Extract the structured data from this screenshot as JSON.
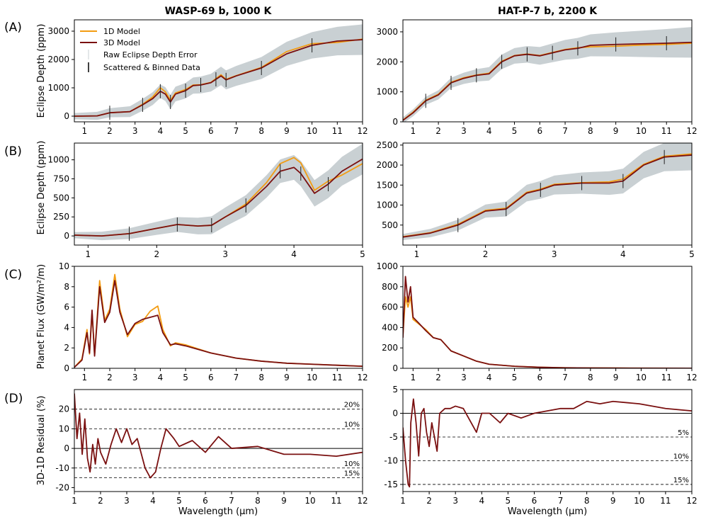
{
  "figure": {
    "titles": [
      "WASP-69 b, 1000 K",
      "HAT-P-7 b, 2200 K"
    ],
    "row_labels": [
      "(A)",
      "(B)",
      "(C)",
      "(D)"
    ],
    "ylabels": [
      "Eclipse Depth (ppm)",
      "Eclipse Depth (ppm)",
      "Planet Flux (GW/m²/m)",
      "3D-1D Residual (%)"
    ],
    "xlabel": "Wavelength (μm)",
    "legend": [
      "1D Model",
      "3D Model",
      "Raw Eclipse Depth Error",
      "Scattered & Binned Data"
    ],
    "colors": {
      "model_1d": "#f39c12",
      "model_3d": "#7a1010",
      "error_band": "#c9d0d3",
      "data": "#222222"
    }
  },
  "chart_data": [
    {
      "id": "A-left",
      "type": "line",
      "title": "WASP-69 b, 1000 K",
      "ylabel": "Eclipse Depth (ppm)",
      "xlim": [
        0.6,
        12
      ],
      "ylim": [
        -200,
        3400
      ],
      "xticks": [
        1,
        2,
        3,
        4,
        5,
        6,
        7,
        8,
        9,
        10,
        11,
        12
      ],
      "yticks": [
        0,
        1000,
        2000,
        3000
      ],
      "series": [
        {
          "name": "3D Model",
          "x": [
            0.6,
            1.5,
            2,
            2.8,
            3.3,
            3.7,
            4,
            4.2,
            4.4,
            4.6,
            5,
            5.3,
            5.6,
            6,
            6.2,
            6.4,
            6.6,
            7,
            8,
            9,
            10,
            11,
            12
          ],
          "values": [
            0,
            10,
            120,
            160,
            400,
            620,
            880,
            780,
            500,
            780,
            900,
            1080,
            1100,
            1180,
            1300,
            1420,
            1280,
            1420,
            1700,
            2200,
            2500,
            2650,
            2700
          ]
        },
        {
          "name": "1D Model",
          "x": [
            0.6,
            1.5,
            2,
            2.8,
            3.3,
            3.7,
            4,
            4.2,
            4.4,
            4.6,
            5,
            5.3,
            5.6,
            6,
            6.2,
            6.4,
            6.6,
            7,
            8,
            9,
            10,
            11,
            12
          ],
          "values": [
            0,
            10,
            120,
            160,
            420,
            680,
            1000,
            860,
            560,
            820,
            940,
            1100,
            1110,
            1190,
            1330,
            1460,
            1300,
            1430,
            1720,
            2280,
            2560,
            2600,
            2720
          ]
        }
      ]
    },
    {
      "id": "A-right",
      "type": "line",
      "title": "HAT-P-7 b, 2200 K",
      "ylabel": "",
      "xlim": [
        0.6,
        12
      ],
      "ylim": [
        0,
        3400
      ],
      "xticks": [
        1,
        2,
        3,
        4,
        5,
        6,
        7,
        8,
        9,
        10,
        11,
        12
      ],
      "yticks": [
        0,
        1000,
        2000,
        3000
      ],
      "series": [
        {
          "name": "3D Model",
          "x": [
            0.6,
            1,
            1.5,
            2,
            2.5,
            3,
            3.5,
            4,
            4.5,
            5,
            5.5,
            6,
            6.5,
            7,
            7.5,
            8,
            9,
            10,
            11,
            12
          ],
          "values": [
            50,
            300,
            700,
            900,
            1300,
            1450,
            1550,
            1600,
            2000,
            2200,
            2250,
            2200,
            2300,
            2400,
            2450,
            2550,
            2580,
            2600,
            2620,
            2650
          ]
        },
        {
          "name": "1D Model",
          "x": [
            0.6,
            1,
            1.5,
            2,
            2.5,
            3,
            3.5,
            4,
            4.5,
            5,
            5.5,
            6,
            6.5,
            7,
            7.5,
            8,
            9,
            10,
            11,
            12
          ],
          "values": [
            60,
            320,
            720,
            920,
            1320,
            1470,
            1560,
            1620,
            2020,
            2210,
            2260,
            2210,
            2310,
            2410,
            2470,
            2500,
            2520,
            2560,
            2580,
            2620
          ]
        }
      ]
    },
    {
      "id": "B-left",
      "type": "line",
      "title": "",
      "ylabel": "Eclipse Depth (ppm)",
      "xlim": [
        0.8,
        5
      ],
      "ylim": [
        -120,
        1220
      ],
      "xticks": [
        1,
        2,
        3,
        4,
        5
      ],
      "yticks": [
        0,
        250,
        500,
        750,
        1000
      ],
      "series": [
        {
          "name": "3D Model",
          "x": [
            0.8,
            1.2,
            1.6,
            2,
            2.3,
            2.6,
            2.8,
            3,
            3.3,
            3.6,
            3.8,
            4,
            4.1,
            4.3,
            4.5,
            4.7,
            5
          ],
          "values": [
            10,
            0,
            30,
            100,
            150,
            130,
            140,
            250,
            400,
            650,
            850,
            900,
            820,
            560,
            680,
            850,
            1010
          ]
        },
        {
          "name": "1D Model",
          "x": [
            0.8,
            1.2,
            1.6,
            2,
            2.3,
            2.6,
            2.8,
            3,
            3.3,
            3.6,
            3.8,
            4,
            4.1,
            4.3,
            4.5,
            4.7,
            5
          ],
          "values": [
            10,
            0,
            30,
            100,
            150,
            130,
            140,
            250,
            420,
            700,
            950,
            1030,
            960,
            600,
            720,
            800,
            950
          ]
        }
      ]
    },
    {
      "id": "B-right",
      "type": "line",
      "title": "",
      "ylabel": "",
      "xlim": [
        0.8,
        5
      ],
      "ylim": [
        0,
        2550
      ],
      "xticks": [
        1,
        2,
        3,
        4,
        5
      ],
      "yticks": [
        500,
        1000,
        1500,
        2000,
        2500
      ],
      "series": [
        {
          "name": "3D Model",
          "x": [
            0.8,
            1.2,
            1.6,
            2,
            2.3,
            2.6,
            2.8,
            3,
            3.4,
            3.8,
            4,
            4.3,
            4.6,
            5
          ],
          "values": [
            200,
            300,
            500,
            850,
            900,
            1300,
            1380,
            1500,
            1550,
            1550,
            1600,
            2000,
            2200,
            2250
          ]
        },
        {
          "name": "1D Model",
          "x": [
            0.8,
            1.2,
            1.6,
            2,
            2.3,
            2.6,
            2.8,
            3,
            3.4,
            3.8,
            4,
            4.3,
            4.6,
            5
          ],
          "values": [
            210,
            310,
            520,
            870,
            920,
            1320,
            1400,
            1520,
            1560,
            1580,
            1650,
            2020,
            2220,
            2280
          ]
        }
      ]
    },
    {
      "id": "C-left",
      "type": "line",
      "title": "",
      "ylabel": "Planet Flux (GW/m²/m)",
      "xlim": [
        0.6,
        12
      ],
      "ylim": [
        0,
        10
      ],
      "xticks": [
        1,
        2,
        3,
        4,
        5,
        6,
        7,
        8,
        9,
        10,
        11,
        12
      ],
      "yticks": [
        0,
        2,
        4,
        6,
        8,
        10
      ],
      "series": [
        {
          "name": "3D Model",
          "x": [
            0.6,
            0.9,
            1.1,
            1.2,
            1.3,
            1.4,
            1.6,
            1.8,
            2,
            2.2,
            2.4,
            2.7,
            3,
            3.3,
            3.6,
            3.9,
            4.1,
            4.4,
            4.6,
            5,
            6,
            7,
            8,
            9,
            10,
            11,
            12
          ],
          "values": [
            0.1,
            0.8,
            3.5,
            1.5,
            5.7,
            1.2,
            8.0,
            4.5,
            5.5,
            8.6,
            5.5,
            3.3,
            4.4,
            4.8,
            5.0,
            5.2,
            3.5,
            2.3,
            2.4,
            2.2,
            1.5,
            1.0,
            0.7,
            0.5,
            0.4,
            0.3,
            0.2
          ]
        },
        {
          "name": "1D Model",
          "x": [
            0.6,
            0.9,
            1.1,
            1.2,
            1.3,
            1.4,
            1.6,
            1.8,
            2,
            2.2,
            2.4,
            2.7,
            3,
            3.3,
            3.6,
            3.9,
            4.1,
            4.4,
            4.6,
            5,
            6,
            7,
            8,
            9,
            10,
            11,
            12
          ],
          "values": [
            0.1,
            0.9,
            3.8,
            1.4,
            5.5,
            1.3,
            8.6,
            4.7,
            5.8,
            9.2,
            5.8,
            3.1,
            4.3,
            4.6,
            5.6,
            6.1,
            3.8,
            2.2,
            2.5,
            2.3,
            1.5,
            1.0,
            0.7,
            0.5,
            0.4,
            0.3,
            0.2
          ]
        }
      ]
    },
    {
      "id": "C-right",
      "type": "line",
      "title": "",
      "ylabel": "",
      "xlim": [
        0.6,
        12
      ],
      "ylim": [
        0,
        1000
      ],
      "xticks": [
        1,
        2,
        3,
        4,
        5,
        6,
        7,
        8,
        9,
        10,
        11,
        12
      ],
      "yticks": [
        0,
        200,
        400,
        600,
        800,
        1000
      ],
      "series": [
        {
          "name": "3D Model",
          "x": [
            0.6,
            0.7,
            0.8,
            0.9,
            1,
            1.2,
            1.5,
            1.8,
            2.1,
            2.5,
            3,
            3.5,
            4,
            5,
            6,
            7,
            8,
            9,
            12
          ],
          "values": [
            300,
            900,
            650,
            800,
            500,
            450,
            370,
            300,
            280,
            170,
            120,
            70,
            40,
            20,
            10,
            5,
            3,
            2,
            1
          ]
        },
        {
          "name": "1D Model",
          "x": [
            0.6,
            0.7,
            0.8,
            0.9,
            1,
            1.2,
            1.5,
            1.8,
            2.1,
            2.5,
            3,
            3.5,
            4,
            5,
            6,
            7,
            8,
            9,
            12
          ],
          "values": [
            320,
            700,
            600,
            700,
            480,
            440,
            380,
            300,
            280,
            170,
            120,
            70,
            40,
            20,
            10,
            5,
            3,
            2,
            1
          ]
        }
      ]
    },
    {
      "id": "D-left",
      "type": "line",
      "title": "",
      "ylabel": "3D-1D Residual (%)",
      "xlim": [
        1,
        12
      ],
      "ylim": [
        -22,
        30
      ],
      "xticks": [
        1,
        2,
        3,
        4,
        5,
        6,
        7,
        8,
        9,
        10,
        11,
        12
      ],
      "yticks": [
        -20,
        -10,
        0,
        10,
        20
      ],
      "reference_lines": [
        {
          "value": 20,
          "label": "20%"
        },
        {
          "value": 10,
          "label": "10%"
        },
        {
          "value": -10,
          "label": "10%"
        },
        {
          "value": -15,
          "label": "15%"
        }
      ],
      "series": [
        {
          "name": "3D Model",
          "x": [
            1,
            1.1,
            1.2,
            1.3,
            1.4,
            1.5,
            1.6,
            1.7,
            1.8,
            1.9,
            2,
            2.2,
            2.4,
            2.6,
            2.8,
            3,
            3.2,
            3.4,
            3.7,
            3.9,
            4.1,
            4.3,
            4.5,
            4.8,
            5,
            5.5,
            6,
            6.5,
            7,
            8,
            9,
            10,
            11,
            12
          ],
          "values": [
            28,
            5,
            18,
            -3,
            15,
            -5,
            -12,
            2,
            -8,
            5,
            -2,
            -8,
            2,
            10,
            3,
            10,
            2,
            5,
            -10,
            -15,
            -12,
            0,
            10,
            5,
            1,
            4,
            -2,
            6,
            0,
            1,
            -3,
            -3,
            -4,
            -2
          ]
        }
      ]
    },
    {
      "id": "D-right",
      "type": "line",
      "title": "",
      "ylabel": "",
      "xlim": [
        1,
        12
      ],
      "ylim": [
        -16.5,
        5
      ],
      "xticks": [
        1,
        2,
        3,
        4,
        5,
        6,
        7,
        8,
        9,
        10,
        11,
        12
      ],
      "yticks": [
        -15,
        -10,
        -5,
        0,
        5
      ],
      "reference_lines": [
        {
          "value": -5,
          "label": "5%"
        },
        {
          "value": -10,
          "label": "10%"
        },
        {
          "value": -15,
          "label": "15%"
        }
      ],
      "series": [
        {
          "name": "3D Model",
          "x": [
            1,
            1.1,
            1.2,
            1.25,
            1.3,
            1.4,
            1.5,
            1.6,
            1.7,
            1.8,
            1.9,
            2,
            2.1,
            2.2,
            2.3,
            2.4,
            2.6,
            2.8,
            3,
            3.3,
            3.6,
            3.8,
            4,
            4.3,
            4.7,
            5,
            5.5,
            6,
            6.5,
            7,
            7.5,
            8,
            8.5,
            9,
            10,
            11,
            12
          ],
          "values": [
            -3,
            -10,
            -15,
            -15.5,
            -2,
            3,
            -2,
            -9,
            0,
            1,
            -4,
            -7,
            -2,
            -5,
            -8,
            0,
            1,
            1,
            1.5,
            1,
            -2,
            -4,
            0,
            0,
            -2,
            0,
            -1,
            0,
            0.5,
            1,
            1,
            2.5,
            2,
            2.5,
            2,
            1,
            0.5
          ]
        }
      ]
    }
  ]
}
